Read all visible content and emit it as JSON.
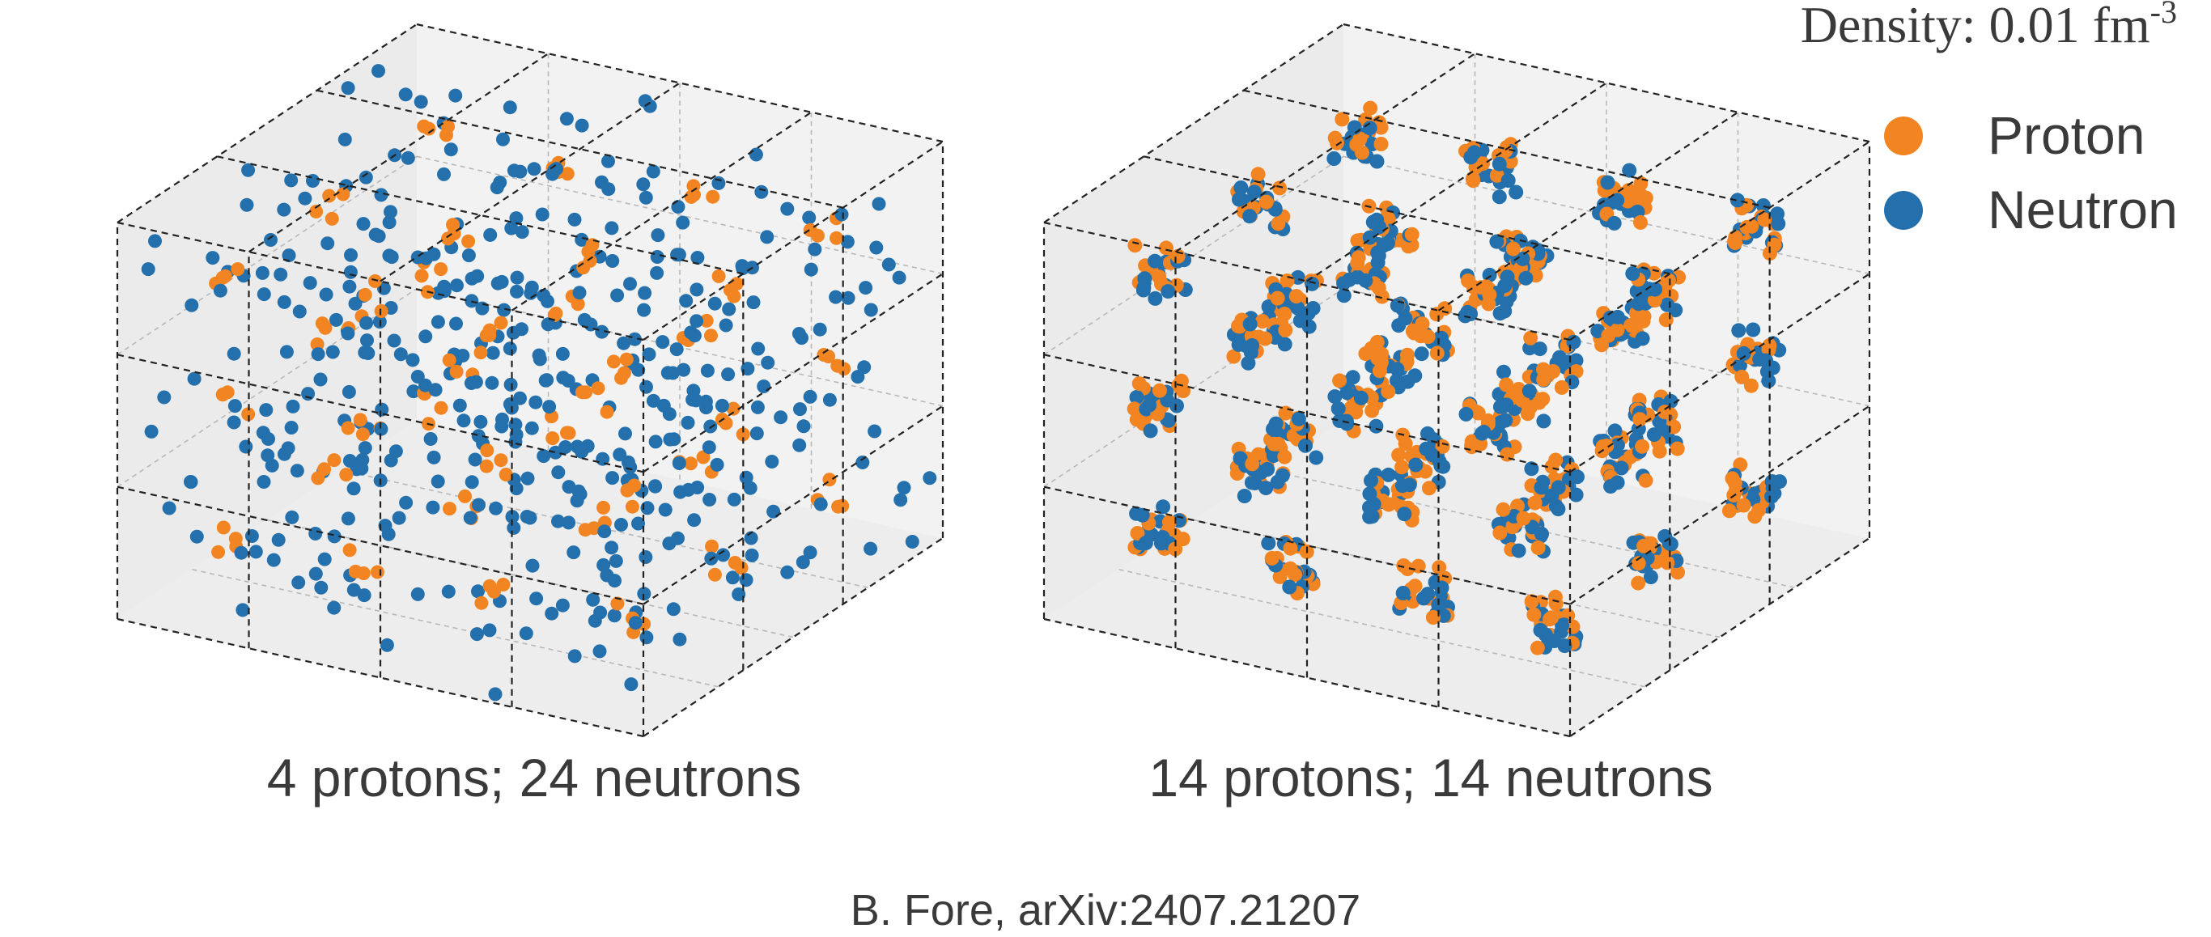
{
  "density": {
    "prefix": "Density: ",
    "value": "0.01",
    "unit": " fm",
    "exponent": "-3"
  },
  "legend": {
    "items": [
      {
        "label": "Proton",
        "color": "#f28522"
      },
      {
        "label": "Neutron",
        "color": "#2470ad"
      }
    ]
  },
  "panels": [
    {
      "caption": "4 protons; 24 neutrons",
      "protons": 4,
      "neutrons": 24
    },
    {
      "caption": "14 protons; 14 neutrons",
      "protons": 14,
      "neutrons": 14
    }
  ],
  "credit": "B. Fore, arXiv:2407.21207",
  "colors": {
    "proton": "#f28522",
    "neutron": "#2470ad",
    "box_face": "#f2f2f2",
    "edge": "#222222"
  }
}
